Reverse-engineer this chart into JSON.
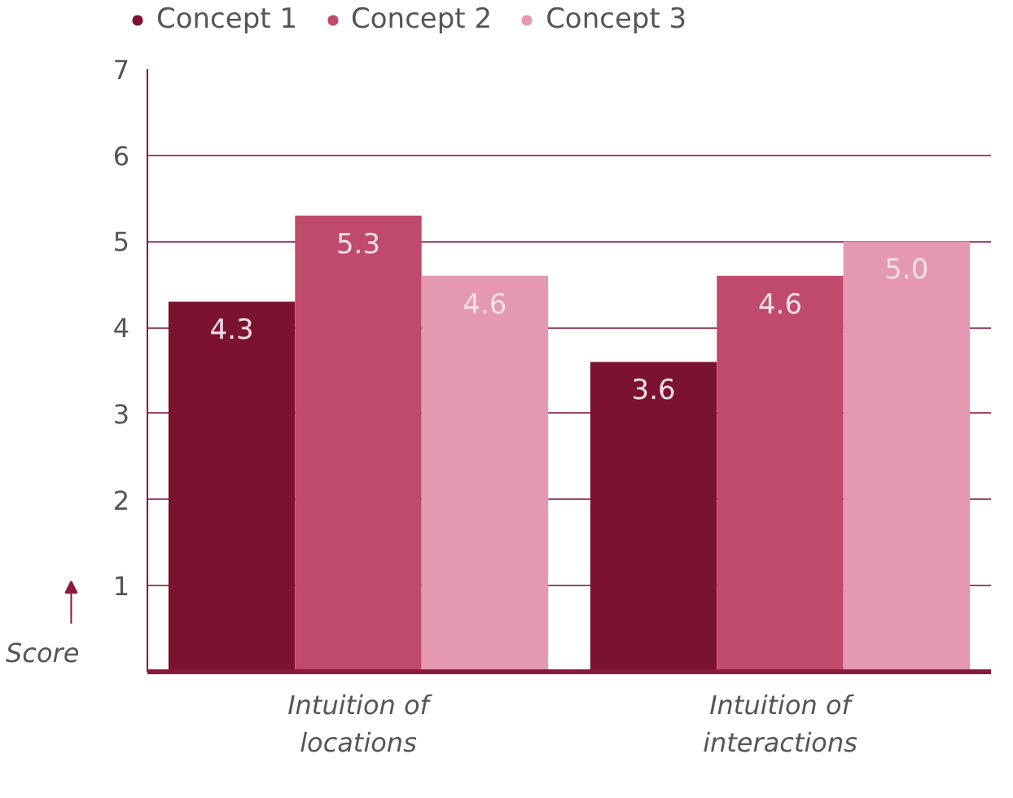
{
  "chart_data": {
    "type": "bar",
    "categories": [
      "Intuition of locations",
      "Intuition of interactions"
    ],
    "series": [
      {
        "name": "Concept 1",
        "color": "#7b1230",
        "values": [
          4.3,
          3.6
        ],
        "value_labels": [
          "4.3",
          "3.6"
        ]
      },
      {
        "name": "Concept 2",
        "color": "#bf4a6b",
        "values": [
          5.3,
          4.6
        ],
        "value_labels": [
          "5.3",
          "4.6"
        ]
      },
      {
        "name": "Concept 3",
        "color": "#e498b2",
        "values": [
          4.6,
          5.0
        ],
        "value_labels": [
          "4.6",
          "5.0"
        ]
      }
    ],
    "ylabel": "Score",
    "ylim": [
      0,
      7
    ],
    "yticks": [
      1,
      2,
      3,
      4,
      5,
      6,
      7
    ],
    "grid": "y",
    "legend": "top left",
    "data_labels": true
  }
}
